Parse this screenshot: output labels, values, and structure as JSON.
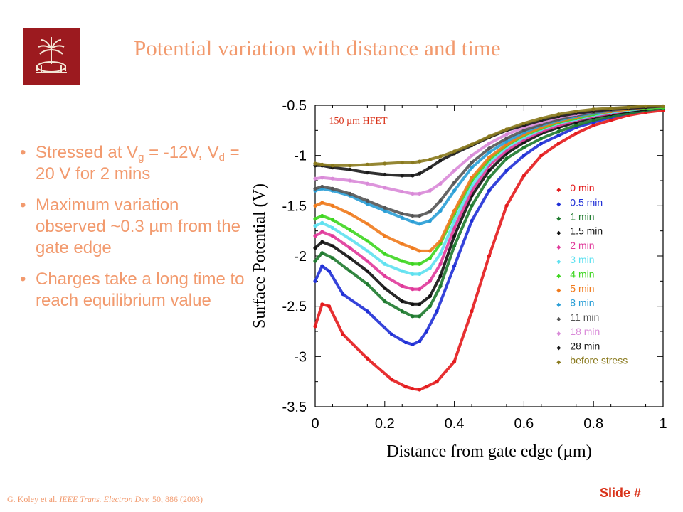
{
  "slide": {
    "title": "Potential variation with distance and time",
    "bullets": [
      {
        "parts": [
          "Stressed at V",
          "g",
          " = -12V, V",
          "d",
          " = 20 V for 2 mins"
        ]
      },
      {
        "text": "Maximum variation observed ~0.3 µm from the gate edge"
      },
      {
        "text": "Charges take a long time to reach equilibrium  value"
      }
    ],
    "citation": {
      "authors": "G. Koley et al. ",
      "journal": "IEEE Trans. Electron Dev.",
      "rest": " 50, 886 (2003)"
    },
    "slide_number": "Slide #",
    "logo_icon": "palmetto-seal-icon",
    "colors": {
      "accent": "#f29a6e",
      "logo_bg": "#9c1a1f",
      "slide_number": "#d9331a"
    }
  },
  "chart_data": {
    "type": "scatter",
    "title": "",
    "annotation": "150 µm HFET",
    "xlabel": "Distance from gate edge (µm)",
    "ylabel": "Surface Potential (V)",
    "xlim": [
      0,
      1
    ],
    "ylim": [
      -3.5,
      -0.5
    ],
    "xticks": [
      0,
      0.2,
      0.4,
      0.6,
      0.8,
      1
    ],
    "xtick_labels": [
      "0",
      "0.2",
      "0.4",
      "0.6",
      "0.8",
      "1"
    ],
    "yticks": [
      -0.5,
      -1,
      -1.5,
      -2,
      -2.5,
      -3,
      -3.5
    ],
    "ytick_labels": [
      "-0.5",
      "-1",
      "-1.5",
      "-2",
      "-2.5",
      "-3",
      "-3.5"
    ],
    "grid": false,
    "legend_position": "bottom-right",
    "series": [
      {
        "name": "0 min",
        "color": "#e41a1c",
        "x": [
          0,
          0.02,
          0.04,
          0.08,
          0.15,
          0.22,
          0.26,
          0.28,
          0.3,
          0.32,
          0.35,
          0.4,
          0.45,
          0.5,
          0.55,
          0.6,
          0.65,
          0.7,
          0.75,
          0.8,
          0.85,
          0.9,
          0.95,
          1.0
        ],
        "y": [
          -2.7,
          -2.48,
          -2.5,
          -2.78,
          -3.02,
          -3.23,
          -3.3,
          -3.32,
          -3.33,
          -3.3,
          -3.25,
          -3.05,
          -2.55,
          -2.0,
          -1.5,
          -1.2,
          -1.0,
          -0.88,
          -0.78,
          -0.7,
          -0.65,
          -0.6,
          -0.57,
          -0.55
        ]
      },
      {
        "name": "0.5 min",
        "color": "#1f2fd6",
        "x": [
          0,
          0.02,
          0.04,
          0.08,
          0.15,
          0.22,
          0.26,
          0.28,
          0.3,
          0.32,
          0.35,
          0.4,
          0.45,
          0.5,
          0.55,
          0.6,
          0.65,
          0.7,
          0.75,
          0.8,
          0.85,
          0.9,
          0.95,
          1.0
        ],
        "y": [
          -2.25,
          -2.1,
          -2.15,
          -2.38,
          -2.55,
          -2.78,
          -2.86,
          -2.88,
          -2.85,
          -2.75,
          -2.55,
          -2.1,
          -1.65,
          -1.35,
          -1.15,
          -1.0,
          -0.88,
          -0.8,
          -0.72,
          -0.67,
          -0.62,
          -0.58,
          -0.55,
          -0.53
        ]
      },
      {
        "name": "1 min",
        "color": "#1e7a2e",
        "x": [
          0,
          0.02,
          0.05,
          0.1,
          0.15,
          0.2,
          0.25,
          0.28,
          0.3,
          0.33,
          0.36,
          0.4,
          0.45,
          0.5,
          0.55,
          0.6,
          0.65,
          0.7,
          0.75,
          0.8,
          0.85,
          0.9,
          0.95,
          1.0
        ],
        "y": [
          -2.05,
          -1.97,
          -2.02,
          -2.15,
          -2.28,
          -2.45,
          -2.55,
          -2.6,
          -2.6,
          -2.5,
          -2.3,
          -1.9,
          -1.5,
          -1.22,
          -1.03,
          -0.92,
          -0.83,
          -0.76,
          -0.7,
          -0.65,
          -0.61,
          -0.58,
          -0.55,
          -0.53
        ]
      },
      {
        "name": "1.5 min",
        "color": "#111111",
        "x": [
          0,
          0.02,
          0.05,
          0.1,
          0.15,
          0.2,
          0.25,
          0.28,
          0.3,
          0.33,
          0.36,
          0.4,
          0.45,
          0.5,
          0.55,
          0.6,
          0.65,
          0.7,
          0.75,
          0.8,
          0.85,
          0.9,
          0.95,
          1.0
        ],
        "y": [
          -1.92,
          -1.86,
          -1.9,
          -2.02,
          -2.15,
          -2.32,
          -2.45,
          -2.48,
          -2.48,
          -2.4,
          -2.2,
          -1.8,
          -1.4,
          -1.15,
          -0.98,
          -0.87,
          -0.78,
          -0.72,
          -0.67,
          -0.62,
          -0.59,
          -0.56,
          -0.54,
          -0.52
        ]
      },
      {
        "name": "2 min",
        "color": "#e0399a",
        "x": [
          0,
          0.02,
          0.05,
          0.1,
          0.15,
          0.2,
          0.25,
          0.28,
          0.3,
          0.33,
          0.36,
          0.4,
          0.45,
          0.5,
          0.55,
          0.6,
          0.65,
          0.7,
          0.75,
          0.8,
          0.85,
          0.9,
          0.95,
          1.0
        ],
        "y": [
          -1.8,
          -1.76,
          -1.8,
          -1.92,
          -2.05,
          -2.2,
          -2.3,
          -2.33,
          -2.33,
          -2.25,
          -2.08,
          -1.72,
          -1.35,
          -1.1,
          -0.95,
          -0.84,
          -0.76,
          -0.7,
          -0.65,
          -0.61,
          -0.58,
          -0.55,
          -0.53,
          -0.52
        ]
      },
      {
        "name": "3 min",
        "color": "#5ee1f0",
        "x": [
          0,
          0.02,
          0.05,
          0.1,
          0.15,
          0.2,
          0.25,
          0.28,
          0.3,
          0.33,
          0.36,
          0.4,
          0.45,
          0.5,
          0.55,
          0.6,
          0.65,
          0.7,
          0.75,
          0.8,
          0.85,
          0.9,
          0.95,
          1.0
        ],
        "y": [
          -1.7,
          -1.67,
          -1.72,
          -1.83,
          -1.95,
          -2.08,
          -2.15,
          -2.18,
          -2.18,
          -2.12,
          -1.98,
          -1.65,
          -1.3,
          -1.07,
          -0.92,
          -0.82,
          -0.74,
          -0.68,
          -0.64,
          -0.6,
          -0.57,
          -0.55,
          -0.53,
          -0.52
        ]
      },
      {
        "name": "4 min",
        "color": "#3ed620",
        "x": [
          0,
          0.02,
          0.05,
          0.1,
          0.15,
          0.2,
          0.25,
          0.28,
          0.3,
          0.33,
          0.36,
          0.4,
          0.45,
          0.5,
          0.55,
          0.6,
          0.65,
          0.7,
          0.75,
          0.8,
          0.85,
          0.9,
          0.95,
          1.0
        ],
        "y": [
          -1.63,
          -1.6,
          -1.64,
          -1.74,
          -1.85,
          -1.98,
          -2.05,
          -2.08,
          -2.08,
          -2.02,
          -1.88,
          -1.58,
          -1.25,
          -1.04,
          -0.9,
          -0.8,
          -0.73,
          -0.67,
          -0.63,
          -0.59,
          -0.56,
          -0.54,
          -0.53,
          -0.52
        ]
      },
      {
        "name": "5 min",
        "color": "#f07a1c",
        "x": [
          0,
          0.02,
          0.05,
          0.1,
          0.15,
          0.2,
          0.25,
          0.28,
          0.3,
          0.33,
          0.36,
          0.4,
          0.45,
          0.5,
          0.55,
          0.6,
          0.65,
          0.7,
          0.75,
          0.8,
          0.85,
          0.9,
          0.95,
          1.0
        ],
        "y": [
          -1.5,
          -1.47,
          -1.5,
          -1.58,
          -1.68,
          -1.8,
          -1.88,
          -1.92,
          -1.95,
          -1.95,
          -1.85,
          -1.55,
          -1.22,
          -1.02,
          -0.89,
          -0.79,
          -0.72,
          -0.66,
          -0.62,
          -0.58,
          -0.56,
          -0.54,
          -0.52,
          -0.51
        ]
      },
      {
        "name": "8 min",
        "color": "#2a9ed6",
        "x": [
          0,
          0.02,
          0.05,
          0.1,
          0.15,
          0.2,
          0.25,
          0.28,
          0.3,
          0.33,
          0.36,
          0.4,
          0.45,
          0.5,
          0.55,
          0.6,
          0.65,
          0.7,
          0.75,
          0.8,
          0.85,
          0.9,
          0.95,
          1.0
        ],
        "y": [
          -1.35,
          -1.33,
          -1.35,
          -1.4,
          -1.48,
          -1.55,
          -1.62,
          -1.66,
          -1.68,
          -1.65,
          -1.55,
          -1.35,
          -1.12,
          -0.97,
          -0.86,
          -0.77,
          -0.7,
          -0.65,
          -0.61,
          -0.58,
          -0.55,
          -0.53,
          -0.52,
          -0.51
        ]
      },
      {
        "name": "11 min",
        "color": "#555555",
        "x": [
          0,
          0.02,
          0.05,
          0.1,
          0.15,
          0.2,
          0.25,
          0.28,
          0.3,
          0.33,
          0.36,
          0.4,
          0.45,
          0.5,
          0.55,
          0.6,
          0.65,
          0.7,
          0.75,
          0.8,
          0.85,
          0.9,
          0.95,
          1.0
        ],
        "y": [
          -1.33,
          -1.31,
          -1.33,
          -1.38,
          -1.45,
          -1.52,
          -1.58,
          -1.6,
          -1.6,
          -1.56,
          -1.45,
          -1.27,
          -1.07,
          -0.93,
          -0.83,
          -0.75,
          -0.69,
          -0.64,
          -0.6,
          -0.57,
          -0.55,
          -0.53,
          -0.52,
          -0.51
        ]
      },
      {
        "name": "18 min",
        "color": "#d98ad8",
        "x": [
          0,
          0.02,
          0.05,
          0.1,
          0.15,
          0.2,
          0.25,
          0.28,
          0.3,
          0.33,
          0.36,
          0.4,
          0.45,
          0.5,
          0.55,
          0.6,
          0.65,
          0.7,
          0.75,
          0.8,
          0.85,
          0.9,
          0.95,
          1.0
        ],
        "y": [
          -1.23,
          -1.22,
          -1.23,
          -1.25,
          -1.28,
          -1.32,
          -1.36,
          -1.38,
          -1.38,
          -1.35,
          -1.28,
          -1.15,
          -1.0,
          -0.88,
          -0.79,
          -0.72,
          -0.67,
          -0.62,
          -0.59,
          -0.56,
          -0.54,
          -0.53,
          -0.52,
          -0.51
        ]
      },
      {
        "name": "28 min",
        "color": "#1a1a1a",
        "x": [
          0,
          0.02,
          0.05,
          0.1,
          0.15,
          0.2,
          0.25,
          0.28,
          0.3,
          0.33,
          0.36,
          0.4,
          0.45,
          0.5,
          0.55,
          0.6,
          0.65,
          0.7,
          0.75,
          0.8,
          0.85,
          0.9,
          0.95,
          1.0
        ],
        "y": [
          -1.1,
          -1.1,
          -1.12,
          -1.14,
          -1.17,
          -1.19,
          -1.2,
          -1.2,
          -1.18,
          -1.12,
          -1.05,
          -0.98,
          -0.9,
          -0.82,
          -0.75,
          -0.7,
          -0.65,
          -0.61,
          -0.58,
          -0.56,
          -0.54,
          -0.53,
          -0.52,
          -0.51
        ]
      },
      {
        "name": "before stress",
        "color": "#8a7a1e",
        "x": [
          0,
          0.02,
          0.05,
          0.1,
          0.15,
          0.2,
          0.25,
          0.28,
          0.3,
          0.33,
          0.36,
          0.4,
          0.45,
          0.5,
          0.55,
          0.6,
          0.65,
          0.7,
          0.75,
          0.8,
          0.85,
          0.9,
          0.95,
          1.0
        ],
        "y": [
          -1.08,
          -1.09,
          -1.1,
          -1.1,
          -1.09,
          -1.08,
          -1.07,
          -1.07,
          -1.06,
          -1.04,
          -1.01,
          -0.96,
          -0.89,
          -0.81,
          -0.74,
          -0.68,
          -0.63,
          -0.59,
          -0.56,
          -0.54,
          -0.53,
          -0.52,
          -0.51,
          -0.51
        ]
      }
    ]
  }
}
